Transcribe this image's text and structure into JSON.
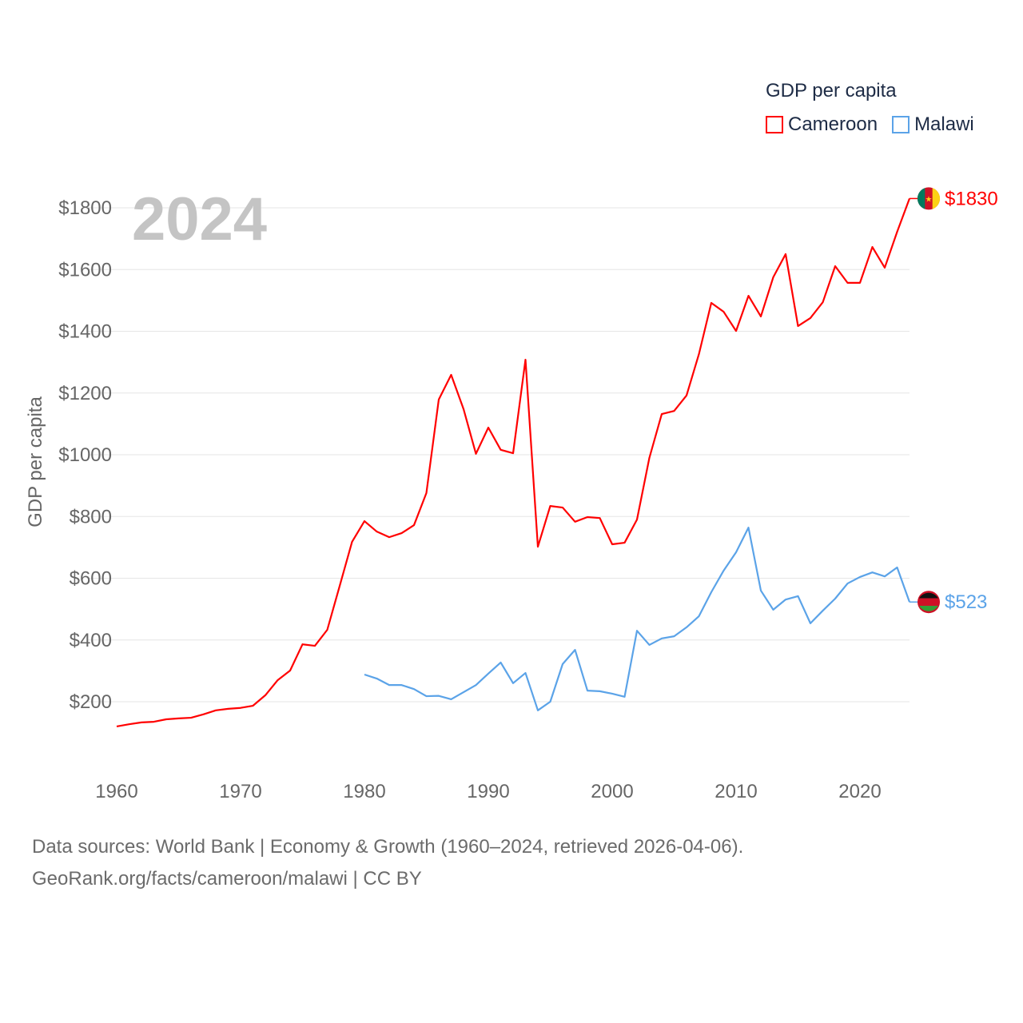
{
  "chart_data": {
    "type": "line",
    "legend_title": "GDP per capita",
    "ylabel": "GDP per capita",
    "xlabel": "",
    "year_label": "2024",
    "ylim": [
      60,
      1880
    ],
    "xlim": [
      1960,
      2024
    ],
    "yticks": [
      200,
      400,
      600,
      800,
      1000,
      1200,
      1400,
      1600,
      1800
    ],
    "ytick_labels": [
      "$200",
      "$400",
      "$600",
      "$800",
      "$1000",
      "$1200",
      "$1400",
      "$1600",
      "$1800"
    ],
    "xticks": [
      1960,
      1970,
      1980,
      1990,
      2000,
      2010,
      2020
    ],
    "xtick_labels": [
      "1960",
      "1970",
      "1980",
      "1990",
      "2000",
      "2010",
      "2020"
    ],
    "grid": true,
    "legend_position": "top-right",
    "series": [
      {
        "name": "Cameroon",
        "color": "#ff0000",
        "end_label": "$1830",
        "start_year": 1960,
        "values": [
          120,
          127,
          133,
          135,
          143,
          146,
          148,
          159,
          172,
          177,
          180,
          187,
          221,
          270,
          301,
          386,
          381,
          433,
          575,
          718,
          785,
          751,
          733,
          746,
          772,
          876,
          1179,
          1259,
          1148,
          1003,
          1088,
          1016,
          1005,
          1308,
          702,
          834,
          829,
          783,
          798,
          795,
          710,
          715,
          790,
          990,
          1132,
          1142,
          1192,
          1326,
          1492,
          1463,
          1401,
          1515,
          1448,
          1575,
          1650,
          1417,
          1443,
          1494,
          1611,
          1557,
          1557,
          1673,
          1606,
          1722,
          1830
        ]
      },
      {
        "name": "Malawi",
        "color": "#5ba3e8",
        "end_label": "$523",
        "start_year": 1980,
        "values": [
          288,
          275,
          254,
          254,
          241,
          218,
          219,
          208,
          231,
          254,
          291,
          327,
          260,
          293,
          172,
          200,
          322,
          368,
          236,
          234,
          226,
          216,
          430,
          384,
          405,
          412,
          441,
          477,
          555,
          625,
          684,
          764,
          560,
          498,
          531,
          542,
          454,
          495,
          534,
          583,
          604,
          619,
          606,
          635,
          523
        ]
      }
    ]
  },
  "footer": {
    "line1": "Data sources: World Bank | Economy & Growth (1960–2024, retrieved 2026-04-06).",
    "line2": "GeoRank.org/facts/cameroon/malawi | CC BY"
  }
}
